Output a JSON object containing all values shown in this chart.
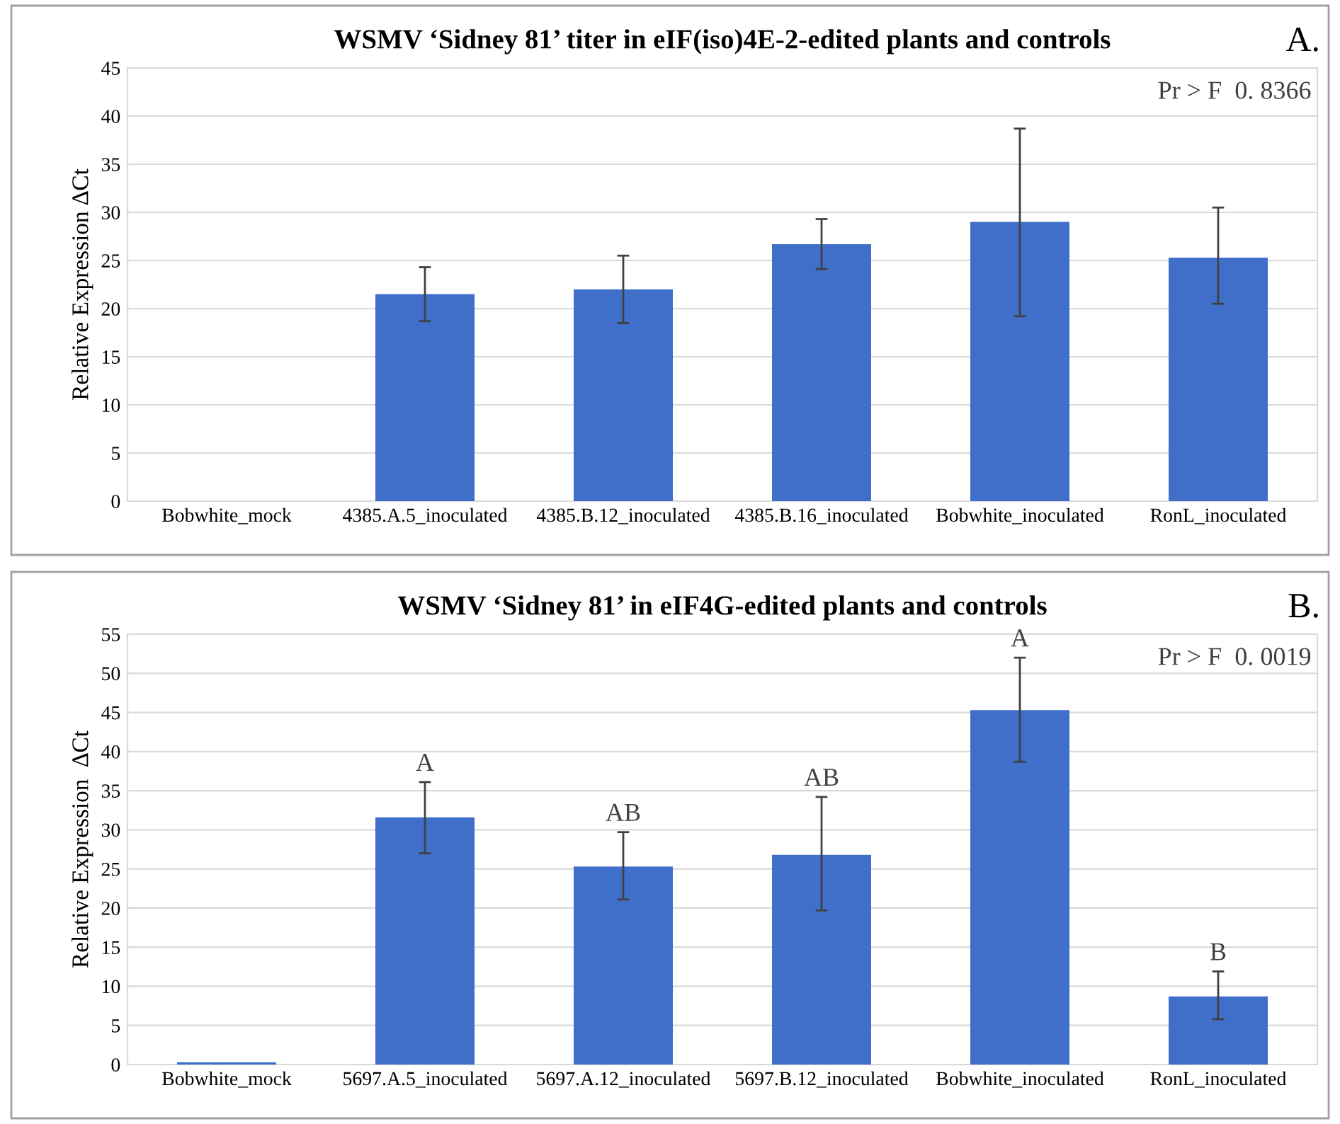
{
  "chart_data": [
    {
      "type": "bar",
      "title": "WSMV ‘Sidney 81’ titer in eIF(iso)4E-2-edited plants and controls",
      "ylabel": "Relative Expression ∆Ct",
      "categories": [
        "Bobwhite_mock",
        "4385.A.5_inoculated",
        "4385.B.12_inoculated",
        "4385.B.16_inoculated",
        "Bobwhite_inoculated",
        "RonL_inoculated"
      ],
      "values": [
        0,
        21.5,
        22,
        26.7,
        29,
        25.3
      ],
      "errors": [
        null,
        [
          18.7,
          24.3
        ],
        [
          18.5,
          25.5
        ],
        [
          24.1,
          29.3
        ],
        [
          19.2,
          38.7
        ],
        [
          20.5,
          30.5
        ]
      ],
      "color": "#3f6fc9",
      "ylim": [
        0,
        45
      ],
      "yticks": [
        0,
        5,
        10,
        15,
        20,
        25,
        30,
        35,
        40,
        45
      ],
      "grid": "y",
      "annotations": [
        "Pr > F  0. 8366",
        "A."
      ]
    },
    {
      "type": "bar",
      "title": "WSMV ‘Sidney 81’ in eIF4G-edited plants and controls",
      "ylabel": "Relative Expression  ∆Ct",
      "categories": [
        "Bobwhite_mock",
        "5697.A.5_inoculated",
        "5697.A.12_inoculated",
        "5697.B.12_inoculated",
        "Bobwhite_inoculated",
        "RonL_inoculated"
      ],
      "values": [
        0.3,
        31.6,
        25.3,
        26.8,
        45.3,
        8.7
      ],
      "errors": [
        null,
        [
          27,
          36.1
        ],
        [
          21.1,
          29.7
        ],
        [
          19.7,
          34.2
        ],
        [
          38.7,
          52
        ],
        [
          5.8,
          11.9
        ]
      ],
      "color": "#3f6fc9",
      "ylim": [
        0,
        55
      ],
      "yticks": [
        0,
        5,
        10,
        15,
        20,
        25,
        30,
        35,
        40,
        45,
        50,
        55
      ],
      "grid": "y",
      "annotations": [
        "Pr > F  0. 0019",
        "B.",
        {
          "text": "A",
          "x": "5697.A.5_inoculated",
          "y": 36.1
        },
        {
          "text": "AB",
          "x": "5697.A.12_inoculated",
          "y": 29.7
        },
        {
          "text": "AB",
          "x": "5697.B.12_inoculated",
          "y": 34.2
        },
        {
          "text": "A",
          "x": "Bobwhite_inoculated",
          "y": 52
        },
        {
          "text": "B",
          "x": "RonL_inoculated",
          "y": 11.9
        }
      ]
    }
  ]
}
